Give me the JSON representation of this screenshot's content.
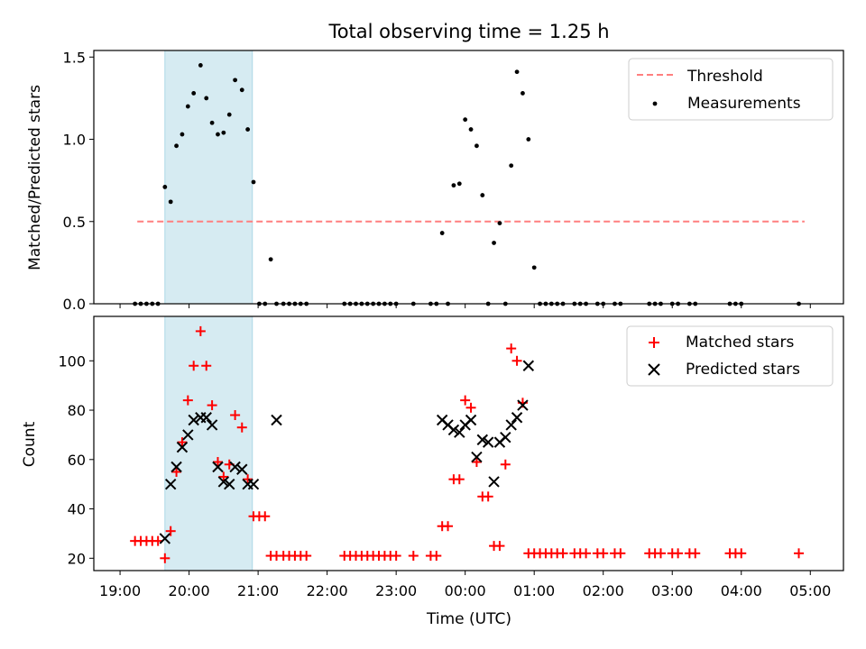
{
  "chart_data": {
    "title": "Total observing time = 1.25 h",
    "xlabel": "Time (UTC)",
    "x_tick_labels": [
      "19:00",
      "20:00",
      "21:00",
      "22:00",
      "23:00",
      "00:00",
      "01:00",
      "02:00",
      "03:00",
      "04:00",
      "05:00"
    ],
    "x_unit": "hours since 19:00 UTC",
    "xlim": [
      -0.38,
      10.48
    ],
    "shaded_interval": {
      "start": "19:39",
      "end": "20:55",
      "color": "#add8e6"
    },
    "panels": [
      {
        "type": "scatter",
        "ylabel": "Matched/Predicted stars",
        "ylim": [
          0,
          1.54
        ],
        "y_ticks": [
          "0.0",
          "0.5",
          "1.0",
          "1.5"
        ],
        "legend_position": "upper right",
        "series": [
          {
            "name": "Threshold",
            "kind": "dashed-line",
            "color": "#ff7f7f",
            "x": [
              "19:15",
              "04:55"
            ],
            "y": [
              0.5,
              0.5
            ]
          },
          {
            "name": "Measurements",
            "kind": "dots",
            "color": "#000000",
            "x": [
              "19:13",
              "19:18",
              "19:23",
              "19:28",
              "19:33",
              "19:39",
              "19:44",
              "19:49",
              "19:54",
              "19:59",
              "20:04",
              "20:10",
              "20:15",
              "20:20",
              "20:25",
              "20:30",
              "20:35",
              "20:40",
              "20:46",
              "20:51",
              "20:56",
              "21:01",
              "21:06",
              "21:11",
              "21:16",
              "21:22",
              "21:27",
              "21:32",
              "21:37",
              "21:42",
              "22:15",
              "22:20",
              "22:25",
              "22:30",
              "22:35",
              "22:40",
              "22:45",
              "22:50",
              "22:55",
              "23:00",
              "23:15",
              "23:30",
              "23:35",
              "23:40",
              "23:45",
              "23:50",
              "23:55",
              "00:00",
              "00:05",
              "00:10",
              "00:15",
              "00:20",
              "00:25",
              "00:30",
              "00:35",
              "00:40",
              "00:45",
              "00:50",
              "00:55",
              "01:00",
              "01:05",
              "01:10",
              "01:15",
              "01:20",
              "01:25",
              "01:35",
              "01:40",
              "01:45",
              "01:55",
              "02:00",
              "02:10",
              "02:15",
              "02:40",
              "02:45",
              "02:50",
              "03:00",
              "03:05",
              "03:15",
              "03:20",
              "03:50",
              "03:55",
              "04:00",
              "04:50"
            ],
            "y": [
              0,
              0,
              0,
              0,
              0,
              0.71,
              0.62,
              0.96,
              1.03,
              1.2,
              1.28,
              1.45,
              1.25,
              1.1,
              1.03,
              1.04,
              1.15,
              1.36,
              1.3,
              1.06,
              0.74,
              0,
              0,
              0.27,
              0,
              0,
              0,
              0,
              0,
              0,
              0,
              0,
              0,
              0,
              0,
              0,
              0,
              0,
              0,
              0,
              0,
              0,
              0,
              0.43,
              0,
              0.72,
              0.73,
              1.12,
              1.06,
              0.96,
              0.66,
              0,
              0.37,
              0.49,
              0,
              0.84,
              1.41,
              1.28,
              1.0,
              0.22,
              0,
              0,
              0,
              0,
              0,
              0,
              0,
              0,
              0,
              0,
              0,
              0,
              0,
              0,
              0,
              0,
              0,
              0,
              0,
              0,
              0,
              0,
              0
            ]
          }
        ]
      },
      {
        "type": "scatter",
        "ylabel": "Count",
        "ylim": [
          15,
          118
        ],
        "y_ticks": [
          "20",
          "40",
          "60",
          "80",
          "100"
        ],
        "legend_position": "upper right",
        "series": [
          {
            "name": "Matched stars",
            "kind": "plus",
            "color": "#ff0000",
            "x": [
              "19:13",
              "19:18",
              "19:23",
              "19:28",
              "19:33",
              "19:39",
              "19:44",
              "19:49",
              "19:54",
              "19:59",
              "20:04",
              "20:10",
              "20:15",
              "20:20",
              "20:25",
              "20:30",
              "20:35",
              "20:40",
              "20:46",
              "20:51",
              "20:56",
              "21:01",
              "21:06",
              "21:11",
              "21:16",
              "21:22",
              "21:27",
              "21:32",
              "21:37",
              "21:42",
              "22:15",
              "22:20",
              "22:25",
              "22:30",
              "22:35",
              "22:40",
              "22:45",
              "22:50",
              "22:55",
              "23:00",
              "23:15",
              "23:30",
              "23:35",
              "23:40",
              "23:45",
              "23:50",
              "23:55",
              "00:00",
              "00:05",
              "00:10",
              "00:15",
              "00:20",
              "00:25",
              "00:30",
              "00:35",
              "00:40",
              "00:45",
              "00:50",
              "00:55",
              "01:00",
              "01:05",
              "01:10",
              "01:15",
              "01:20",
              "01:25",
              "01:35",
              "01:40",
              "01:45",
              "01:55",
              "02:00",
              "02:10",
              "02:15",
              "02:40",
              "02:45",
              "02:50",
              "03:00",
              "03:05",
              "03:15",
              "03:20",
              "03:50",
              "03:55",
              "04:00",
              "04:50"
            ],
            "y": [
              27,
              27,
              27,
              27,
              27,
              20,
              31,
              55,
              67,
              84,
              98,
              112,
              98,
              82,
              59,
              53,
              58,
              78,
              73,
              52,
              37,
              37,
              37,
              21,
              21,
              21,
              21,
              21,
              21,
              21,
              21,
              21,
              21,
              21,
              21,
              21,
              21,
              21,
              21,
              21,
              21,
              21,
              21,
              33,
              33,
              52,
              52,
              84,
              81,
              59,
              45,
              45,
              25,
              25,
              58,
              105,
              100,
              83,
              22,
              22,
              22,
              22,
              22,
              22,
              22,
              22,
              22,
              22,
              22,
              22,
              22,
              22,
              22,
              22,
              22,
              22,
              22,
              22,
              22,
              22,
              22,
              22,
              22
            ]
          },
          {
            "name": "Predicted stars",
            "kind": "x",
            "color": "#000000",
            "x": [
              "19:39",
              "19:44",
              "19:49",
              "19:54",
              "19:59",
              "20:04",
              "20:10",
              "20:15",
              "20:20",
              "20:25",
              "20:30",
              "20:35",
              "20:40",
              "20:46",
              "20:51",
              "20:56",
              "21:16",
              "23:40",
              "23:45",
              "23:50",
              "23:55",
              "00:00",
              "00:05",
              "00:10",
              "00:15",
              "00:20",
              "00:25",
              "00:30",
              "00:35",
              "00:40",
              "00:45",
              "00:50",
              "00:55"
            ],
            "y": [
              28,
              50,
              57,
              65,
              70,
              76,
              77,
              77,
              74,
              57,
              51,
              50,
              57,
              56,
              50,
              50,
              76,
              76,
              74,
              72,
              71,
              74,
              76,
              61,
              68,
              67,
              51,
              67,
              69,
              74,
              77,
              82,
              98
            ]
          }
        ]
      }
    ]
  }
}
